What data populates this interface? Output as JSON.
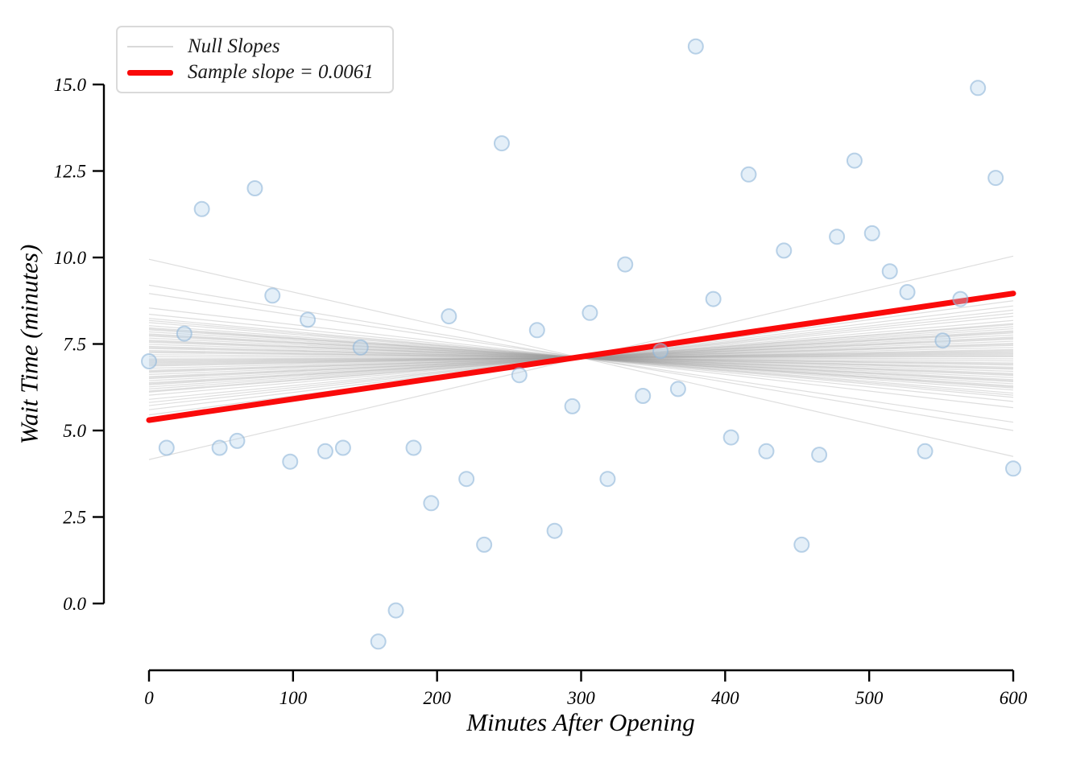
{
  "chart_data": {
    "type": "scatter",
    "title": "",
    "xlabel": "Minutes After Opening",
    "ylabel": "Wait Time (minutes)",
    "xlim": [
      -30,
      630
    ],
    "ylim": [
      -1.95,
      16.95
    ],
    "grid": false,
    "x_ticks": [
      0,
      100,
      200,
      300,
      400,
      500,
      600
    ],
    "x_tick_labels": [
      "0",
      "100",
      "200",
      "300",
      "400",
      "500",
      "600"
    ],
    "y_ticks": [
      0,
      2.5,
      5,
      7.5,
      10,
      12.5,
      15
    ],
    "y_tick_labels": [
      "0.0",
      "2.5",
      "5.0",
      "7.5",
      "10.0",
      "12.5",
      "15.0"
    ],
    "points": {
      "x": [
        0,
        12.2,
        24.5,
        36.7,
        49,
        61.2,
        73.5,
        85.7,
        98,
        110.2,
        122.4,
        134.7,
        146.9,
        159.2,
        171.4,
        183.7,
        195.9,
        208.2,
        220.4,
        232.7,
        244.9,
        257.1,
        269.4,
        281.6,
        293.9,
        306.1,
        318.4,
        330.6,
        342.9,
        355.1,
        367.3,
        379.6,
        391.8,
        404.1,
        416.3,
        428.6,
        440.8,
        453.1,
        465.3,
        477.6,
        489.8,
        502,
        514.3,
        526.5,
        538.8,
        551,
        563.3,
        575.5,
        587.8,
        600
      ],
      "y": [
        7.0,
        4.5,
        7.8,
        11.4,
        4.5,
        4.7,
        12.0,
        8.9,
        4.1,
        8.2,
        4.4,
        4.5,
        7.4,
        -1.1,
        -0.2,
        4.5,
        2.9,
        8.3,
        3.6,
        1.7,
        13.3,
        6.6,
        7.9,
        2.1,
        5.7,
        8.4,
        3.6,
        9.8,
        6.0,
        7.3,
        6.2,
        16.1,
        8.8,
        4.8,
        12.4,
        4.4,
        10.2,
        1.7,
        4.3,
        10.6,
        12.8,
        10.7,
        9.6,
        9.0,
        4.4,
        7.6,
        8.8,
        14.9,
        12.3,
        3.9
      ]
    },
    "sample_line": {
      "label": "Sample slope = 0.0061",
      "slope": 0.0061,
      "intercept": 5.3,
      "x_range": [
        0,
        600
      ],
      "color": "#fa0a0a",
      "width": 7
    },
    "null_lines": {
      "label": "Null Slopes",
      "pivot": [
        300,
        7.1
      ],
      "x_range": [
        0,
        600
      ],
      "color": "#9a9a9a",
      "opacity": 0.33,
      "slopes": [
        -0.0095,
        0.0098,
        -0.007,
        0.0055,
        -0.0062,
        0.0046,
        -0.0048,
        0.004,
        -0.0042,
        0.0036,
        -0.0038,
        0.0033,
        -0.0034,
        0.003,
        -0.0031,
        0.0028,
        -0.0029,
        0.0026,
        -0.0027,
        0.0024,
        -0.0025,
        0.0022,
        -0.0023,
        0.002,
        -0.0021,
        0.0018,
        -0.0019,
        0.0016,
        -0.0017,
        0.0014,
        -0.0015,
        0.0012,
        -0.0013,
        0.001,
        -0.0011,
        0.0008,
        -0.0009,
        0.0006,
        -0.0007,
        0.0004,
        -0.0005,
        0.0002,
        -0.0003,
        0.0001,
        -0.0001,
        0.0003,
        0.0005,
        -0.0006,
        0.0007,
        -0.001,
        0.0013,
        -0.0016,
        0.0019,
        -0.0022,
        0.0025,
        -0.0028,
        0.0032,
        -0.0036,
        0.0043,
        0.005
      ]
    },
    "legend": {
      "position": "upper left",
      "items": [
        {
          "label": "Null Slopes",
          "swatch": "thin-gray-line",
          "color": "#d9d9d9"
        },
        {
          "label": "Sample slope = 0.0061",
          "swatch": "thick-red-line",
          "color": "#fa0a0a"
        }
      ]
    },
    "point_style": {
      "radius": 9,
      "fill": "#b9d5ec",
      "fill_opacity": 0.38,
      "stroke": "#8fb6d9",
      "stroke_opacity": 0.6,
      "stroke_width": 2
    }
  }
}
